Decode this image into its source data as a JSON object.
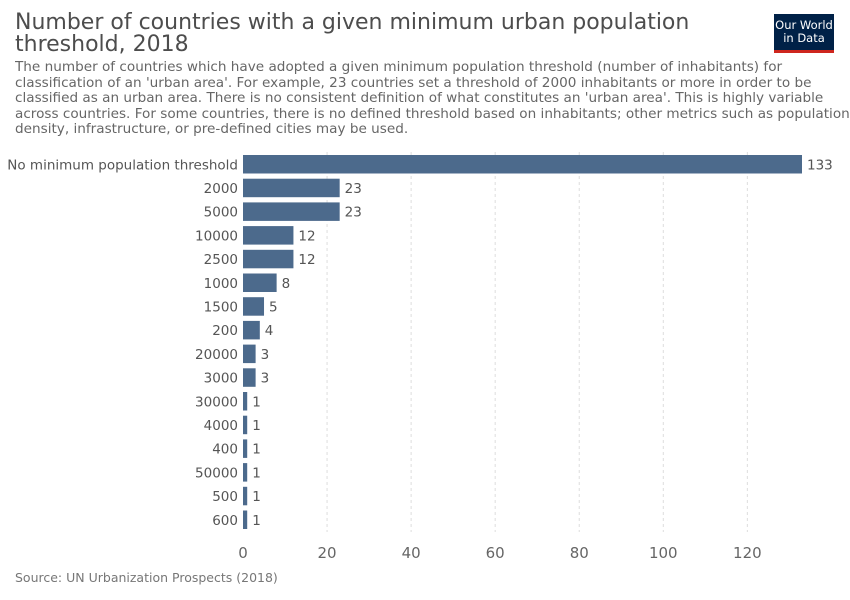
{
  "header": {
    "title": "Number of countries with a given minimum urban population threshold, 2018",
    "subtitle": "The number of countries which have adopted a given minimum population threshold (number of inhabitants) for classification of an 'urban area'. For example, 23 countries set a threshold of 2000 inhabitants or more in order to be classified as an urban area. There is no consistent definition of what constitutes an 'urban area'. This is highly variable across countries. For some countries, there is no defined threshold based on inhabitants; other metrics such as population density, infrastructure, or pre-defined cities may be used."
  },
  "logo": {
    "line1": "Our World",
    "line2": "in Data",
    "bg_color": "#002147",
    "accent_color": "#ce261e"
  },
  "footer": {
    "source": "Source: UN Urbanization Prospects (2018)"
  },
  "chart_data": {
    "type": "bar",
    "orientation": "horizontal",
    "categories": [
      "No minimum population threshold",
      "2000",
      "5000",
      "10000",
      "2500",
      "1000",
      "1500",
      "200",
      "20000",
      "3000",
      "30000",
      "4000",
      "400",
      "50000",
      "500",
      "600"
    ],
    "values": [
      133,
      23,
      23,
      12,
      12,
      8,
      5,
      4,
      3,
      3,
      1,
      1,
      1,
      1,
      1,
      1
    ],
    "xticks": [
      0,
      20,
      40,
      60,
      80,
      100,
      120
    ],
    "xlim": [
      0,
      133
    ],
    "grid": "vertical-dashed",
    "bar_color": "#4c6a8c"
  }
}
